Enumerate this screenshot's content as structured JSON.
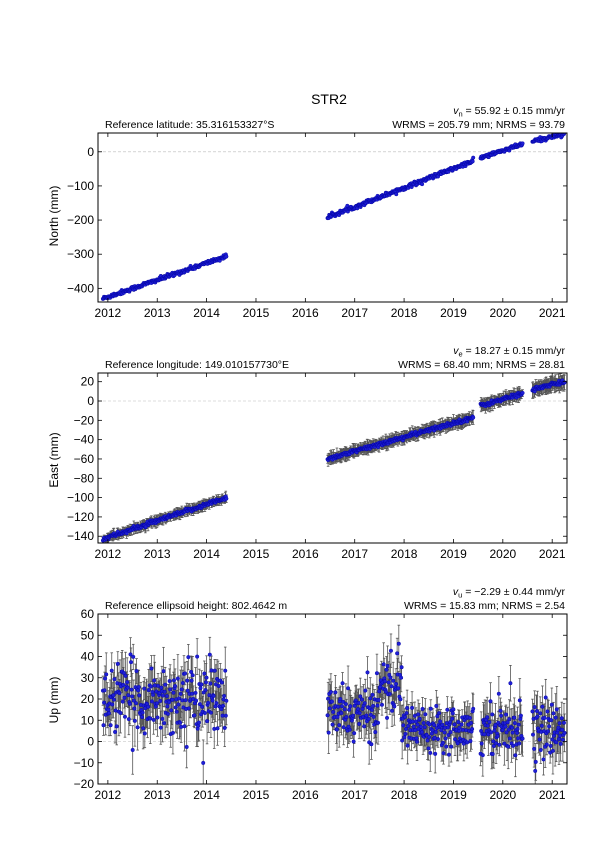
{
  "title": "STR2",
  "chart_data": [
    {
      "type": "scatter",
      "panel": "north",
      "ylabel": "North (mm)",
      "ref_text": "Reference latitude: 35.316153327°S",
      "velocity": {
        "symbol": "v",
        "sub": "n",
        "rest": " = 55.92 ± 0.15 mm/yr"
      },
      "stats": "WRMS = 205.79 mm; NRMS = 93.79",
      "xlim": [
        2011.8,
        2021.3
      ],
      "ylim": [
        -440,
        55
      ],
      "yticks": [
        0,
        -100,
        -200,
        -300,
        -400
      ],
      "ytick_labels": [
        "0",
        "−100",
        "−200",
        "−300",
        "−400"
      ],
      "xticks": [
        2012,
        2013,
        2014,
        2015,
        2016,
        2017,
        2018,
        2019,
        2020,
        2021
      ],
      "xtick_labels": [
        "2012",
        "2013",
        "2014",
        "2015",
        "2016",
        "2017",
        "2018",
        "2019",
        "2020",
        "2021"
      ],
      "zero_line": true,
      "series": [
        {
          "x": [
            2011.9,
            2014.4
          ],
          "y": [
            -430,
            -306
          ],
          "err": 3
        },
        {
          "x": [
            2016.45,
            2019.4
          ],
          "y": [
            -192,
            -27
          ],
          "err": 3
        },
        {
          "x": [
            2019.55,
            2020.4
          ],
          "y": [
            -18,
            22
          ],
          "err": 3
        },
        {
          "x": [
            2020.6,
            2021.25
          ],
          "y": [
            30,
            53
          ],
          "err": 3
        }
      ]
    },
    {
      "type": "scatter",
      "panel": "east",
      "ylabel": "East (mm)",
      "ref_text": "Reference longitude: 149.010157730°E",
      "velocity": {
        "symbol": "v",
        "sub": "e",
        "rest": " = 18.27 ± 0.15 mm/yr"
      },
      "stats": "WRMS = 68.40 mm; NRMS = 28.81",
      "xlim": [
        2011.8,
        2021.3
      ],
      "ylim": [
        -147,
        29
      ],
      "yticks": [
        20,
        0,
        -20,
        -40,
        -60,
        -80,
        -100,
        -120,
        -140
      ],
      "ytick_labels": [
        "20",
        "0",
        "−20",
        "−40",
        "−60",
        "−80",
        "−100",
        "−120",
        "−140"
      ],
      "xticks": [
        2012,
        2013,
        2014,
        2015,
        2016,
        2017,
        2018,
        2019,
        2020,
        2021
      ],
      "xtick_labels": [
        "2012",
        "2013",
        "2014",
        "2015",
        "2016",
        "2017",
        "2018",
        "2019",
        "2020",
        "2021"
      ],
      "zero_line": true,
      "series": [
        {
          "x": [
            2011.9,
            2014.4
          ],
          "y": [
            -143,
            -100
          ],
          "err": 4
        },
        {
          "x": [
            2016.45,
            2019.4
          ],
          "y": [
            -60,
            -17
          ],
          "err": 5
        },
        {
          "x": [
            2019.55,
            2020.4
          ],
          "y": [
            -5,
            8
          ],
          "err": 5
        },
        {
          "x": [
            2020.6,
            2021.25
          ],
          "y": [
            12,
            20
          ],
          "err": 6
        }
      ]
    },
    {
      "type": "scatter",
      "panel": "up",
      "ylabel": "Up (mm)",
      "ref_text": "Reference ellipsoid height: 802.4642 m",
      "velocity": {
        "symbol": "v",
        "sub": "u",
        "rest": " = −2.29 ± 0.44 mm/yr"
      },
      "stats": "WRMS = 15.83 mm; NRMS = 2.54",
      "xlim": [
        2011.8,
        2021.3
      ],
      "ylim": [
        -20,
        60
      ],
      "yticks": [
        60,
        50,
        40,
        30,
        20,
        10,
        0,
        -10,
        -20
      ],
      "ytick_labels": [
        "60",
        "50",
        "40",
        "30",
        "20",
        "10",
        "0",
        "−10",
        "−20"
      ],
      "xticks": [
        2012,
        2013,
        2014,
        2015,
        2016,
        2017,
        2018,
        2019,
        2020,
        2021
      ],
      "xtick_labels": [
        "2012",
        "2013",
        "2014",
        "2015",
        "2016",
        "2017",
        "2018",
        "2019",
        "2020",
        "2021"
      ],
      "zero_line": true,
      "series": [
        {
          "x": [
            2011.9,
            2014.4
          ],
          "y": [
            20,
            20
          ],
          "scatter": 8,
          "err": 8
        },
        {
          "x": [
            2016.45,
            2017.45
          ],
          "y": [
            13,
            13
          ],
          "scatter": 6,
          "err": 7
        },
        {
          "x": [
            2017.45,
            2017.95
          ],
          "y": [
            27,
            27
          ],
          "scatter": 7,
          "err": 7
        },
        {
          "x": [
            2017.95,
            2019.4
          ],
          "y": [
            7,
            7
          ],
          "scatter": 5,
          "err": 6
        },
        {
          "x": [
            2019.55,
            2020.4
          ],
          "y": [
            7,
            7
          ],
          "scatter": 6,
          "err": 7
        },
        {
          "x": [
            2020.6,
            2021.25
          ],
          "y": [
            5,
            5
          ],
          "scatter": 6,
          "err": 8
        }
      ]
    }
  ],
  "colors": {
    "marker": "#1f1fd6",
    "marker_edge": "#0000a0",
    "errorbar": "#555555",
    "zero_line": "#bbbbbb"
  }
}
